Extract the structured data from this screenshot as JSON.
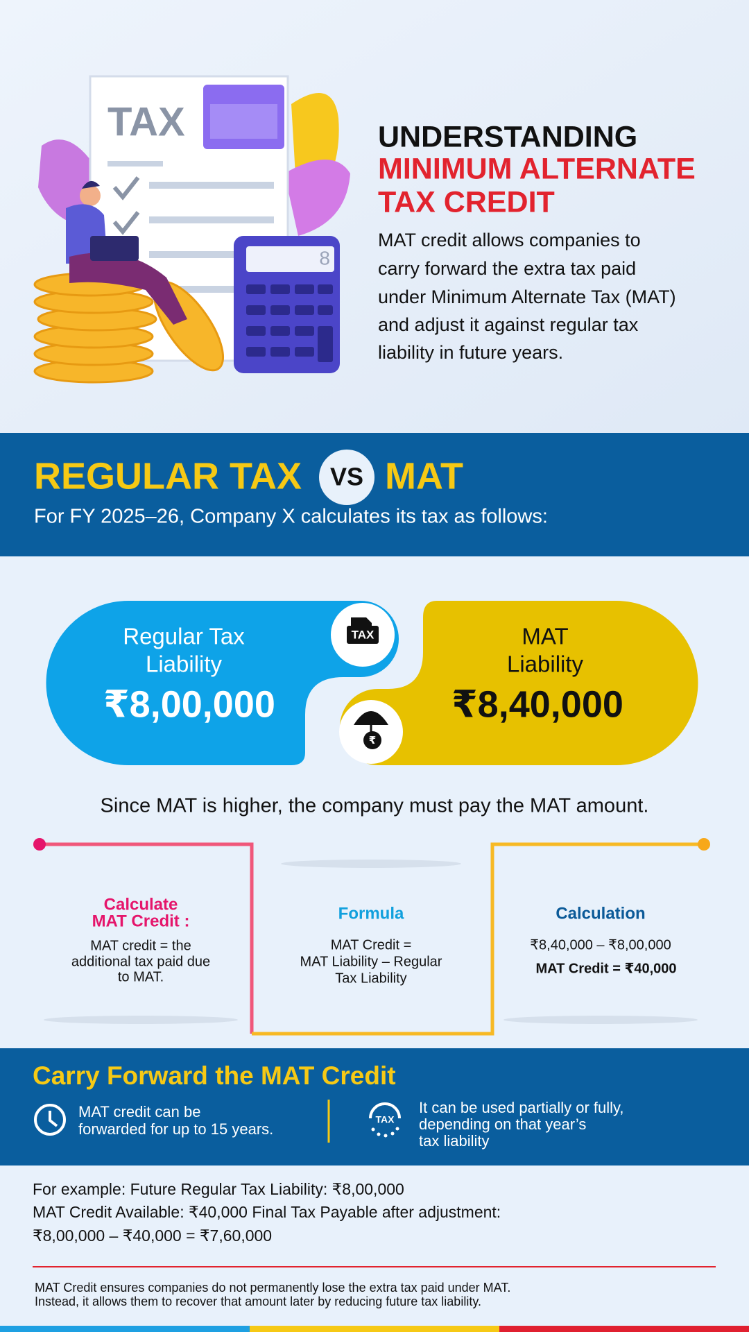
{
  "hero": {
    "illustration": {
      "document_label": "TAX",
      "calculator_display": "8"
    },
    "title": "UNDERSTANDING",
    "title_highlight": [
      "MINIMUM ALTERNATE",
      "TAX CREDIT"
    ],
    "description": [
      "MAT credit allows companies to",
      "carry forward the extra tax paid",
      "under Minimum Alternate Tax (MAT)",
      "and adjust it against regular tax",
      "liability in future years."
    ]
  },
  "comparison_banner": {
    "heading_left": "REGULAR TAX",
    "vs": "VS",
    "heading_right": "MAT",
    "subtitle": "For FY 2025–26, Company X calculates its tax as follows:"
  },
  "cards": [
    {
      "label": [
        "Regular Tax",
        "Liability"
      ],
      "value": "₹8,00,000",
      "icon_label": "TAX"
    },
    {
      "label": [
        "MAT",
        "Liability"
      ],
      "value": "₹8,40,000",
      "icon_label": "₹"
    }
  ],
  "conclusion": "Since MAT is higher, the company must pay the MAT amount.",
  "steps": [
    {
      "heading": [
        "Calculate",
        "MAT Credit :"
      ],
      "body": [
        "MAT credit = the",
        "additional tax paid due",
        "to MAT."
      ]
    },
    {
      "heading": [
        "Formula"
      ],
      "body": [
        "MAT Credit =",
        "MAT Liability – Regular",
        "Tax Liability"
      ]
    },
    {
      "heading": [
        "Calculation"
      ],
      "body": [
        "₹8,40,000 – ₹8,00,000"
      ],
      "result": "MAT Credit = ₹40,000"
    }
  ],
  "carry_forward": {
    "heading": "Carry Forward the MAT Credit",
    "items": [
      {
        "text": [
          "MAT credit can be",
          "forwarded for up to 15 years."
        ]
      },
      {
        "icon_label": "TAX",
        "text": [
          "It can be used partially or fully,",
          "depending on that year’s",
          "tax liability"
        ]
      }
    ]
  },
  "example": [
    "For example: Future Regular Tax Liability: ₹8,00,000",
    "MAT Credit Available: ₹40,000 Final Tax Payable after adjustment:",
    "₹8,00,000 – ₹40,000 = ₹7,60,000"
  ],
  "footer": [
    "MAT Credit ensures companies do not permanently lose the extra tax paid under MAT.",
    "Instead, it allows them to recover that amount later by reducing future tax liability."
  ]
}
